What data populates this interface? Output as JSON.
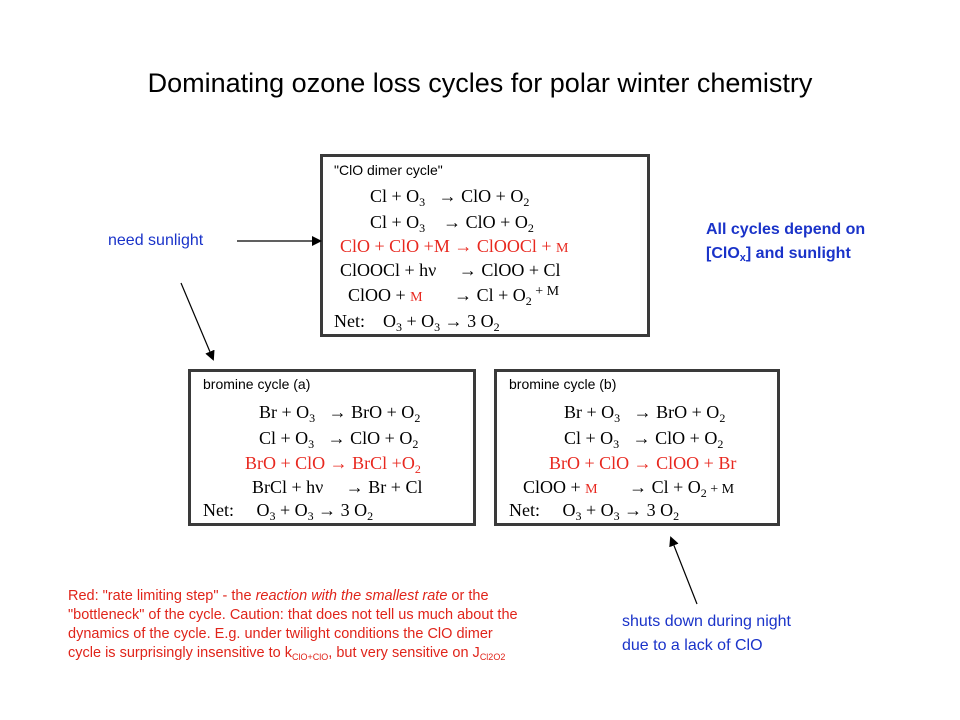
{
  "title": "Dominating ozone loss cycles for polar winter chemistry",
  "clo_dimer_box": {
    "label": "\"ClO dimer cycle\"",
    "r1": {
      "a": "Cl + O",
      "a_sub": "3",
      "arrow": "→",
      "b": " ClO + O",
      "b_sub": "2"
    },
    "r2": {
      "a": "Cl + O",
      "a_sub": "3",
      "arrow": "→",
      "b": " ClO + O",
      "b_sub": "2"
    },
    "r3": {
      "a": "ClO + ClO +M ",
      "arrow": "→",
      "b": " ClOOCl + ",
      "m": "M"
    },
    "r4": {
      "a": "ClOOCl + hν ",
      "arrow": "→",
      "b": " ClOO + Cl"
    },
    "r5": {
      "a": "ClOO + ",
      "m": "M",
      "arrow": "→",
      "b": " Cl + O",
      "b_sub": "2",
      "c": " + M"
    },
    "net": {
      "label": "Net:",
      "a": "O",
      "a_sub": "3",
      "mid": " + O",
      "mid_sub": "3",
      "arrow": "→",
      "b": " 3 O",
      "b_sub": "2"
    }
  },
  "bromine_a_box": {
    "label": "bromine cycle (a)",
    "r1": {
      "a": "Br + O",
      "a_sub": "3",
      "arrow": "→",
      "b": " BrO + O",
      "b_sub": "2"
    },
    "r2": {
      "a": "Cl + O",
      "a_sub": "3",
      "arrow": "→",
      "b": " ClO + O",
      "b_sub": "2"
    },
    "r3": {
      "a": "BrO + ClO ",
      "arrow": "→",
      "b": " BrCl +O",
      "b_sub": "2"
    },
    "r4": {
      "a": "BrCl + hν ",
      "arrow": "→",
      "b": " Br + Cl"
    },
    "net": {
      "label": "Net:",
      "a": "O",
      "a_sub": "3",
      "mid": " + O",
      "mid_sub": "3",
      "arrow": "→",
      "b": " 3 O",
      "b_sub": "2"
    }
  },
  "bromine_b_box": {
    "label": "bromine cycle (b)",
    "r1": {
      "a": "Br + O",
      "a_sub": "3",
      "arrow": "→",
      "b": " BrO + O",
      "b_sub": "2"
    },
    "r2": {
      "a": "Cl + O",
      "a_sub": "3",
      "arrow": "→",
      "b": " ClO + O",
      "b_sub": "2"
    },
    "r3": {
      "a": "BrO + ClO ",
      "arrow": "→",
      "b": " ClOO + Br"
    },
    "r4": {
      "a": "ClOO + ",
      "m": "M",
      "arrow": "→",
      "b": " Cl + O",
      "b_sub": "2",
      "c": " + M"
    },
    "net": {
      "label": "Net:",
      "a": "O",
      "a_sub": "3",
      "mid": " + O",
      "mid_sub": "3",
      "arrow": "→",
      "b": " 3 O",
      "b_sub": "2"
    }
  },
  "annotations": {
    "need_sunlight": "need sunlight",
    "depend_line1": "All cycles depend on",
    "depend_line2_a": "[ClO",
    "depend_line2_sub": "x",
    "depend_line2_b": "] and sunlight",
    "shuts_line1": "shuts down during night",
    "shuts_line2": "due to a lack of ClO",
    "red_a": "Red: \"rate limiting step\" - the ",
    "red_b": "reaction with the smallest rate",
    "red_c": " or the \"bottleneck\" of the cycle. Caution: that does not tell us much about the dynamics of the cycle. E.g. under twilight conditions the ClO dimer cycle is surprisingly insensitive to k",
    "red_k_sub": "ClO+ClO",
    "red_d": ", but very sensitive on J",
    "red_j_sub": "Cl2O2"
  },
  "colors": {
    "red": "#e8281f",
    "blue": "#1a33c9",
    "border": "#3a3a3a"
  }
}
